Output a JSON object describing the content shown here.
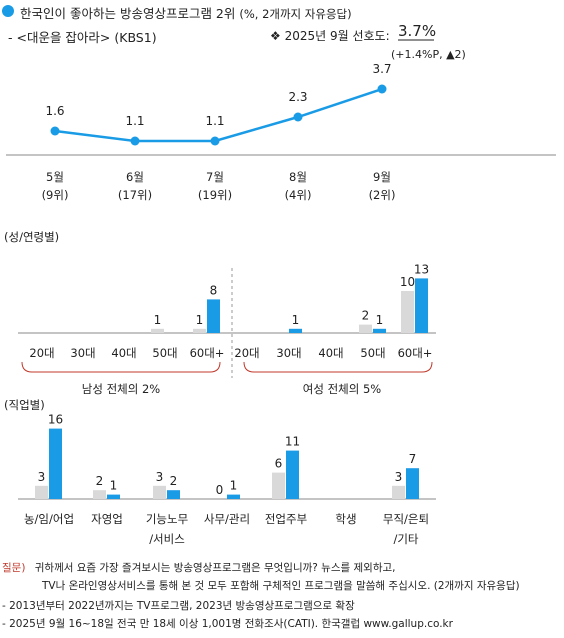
{
  "header": {
    "title_main": "한국인이 좋아하는 방송영상프로그램 2위",
    "title_note": "(%, 2개까지 자유응답)",
    "program": "- <대운을 잡아라> (KBS1)",
    "pref_label": "❖  2025년 9월 선호도:",
    "pref_value": "3.7%",
    "pref_change": "(+1.4%P, ▲2)"
  },
  "colors": {
    "accent": "#1a9be6",
    "gray": "#d9d9d9",
    "bracket": "#c0392b"
  },
  "chart_data": [
    {
      "type": "line",
      "categories": [
        "5월",
        "6월",
        "7월",
        "8월",
        "9월"
      ],
      "ranks": [
        "(9위)",
        "(17위)",
        "(19위)",
        "(4위)",
        "(2위)"
      ],
      "values": [
        1.6,
        1.1,
        1.1,
        2.3,
        3.7
      ],
      "value_labels": [
        "1.6",
        "1.1",
        "1.1",
        "2.3",
        "3.7"
      ]
    },
    {
      "type": "bar",
      "title": "(성/연령별)",
      "categories": [
        "20대",
        "30대",
        "40대",
        "50대",
        "60대+",
        "20대",
        "30대",
        "40대",
        "50대",
        "60대+"
      ],
      "series": [
        {
          "values": [
            0,
            0,
            0,
            1,
            1,
            0,
            0,
            0,
            2,
            10
          ]
        },
        {
          "values": [
            0,
            0,
            0,
            0,
            8,
            0,
            1,
            0,
            1,
            13
          ]
        }
      ],
      "labels": {
        "gray": [
          "",
          "",
          "",
          "1",
          "1",
          "",
          "",
          "",
          "2",
          "10"
        ],
        "blue": [
          "",
          "",
          "",
          "",
          "8",
          "",
          "1",
          "",
          "1",
          "13"
        ]
      },
      "groups": [
        "남성 전체의 2%",
        "여성 전체의 5%"
      ]
    },
    {
      "type": "bar",
      "title": "(직업별)",
      "categories": [
        "농/임/어업",
        "자영업",
        "기능노무/서비스",
        "사무/관리",
        "전업주부",
        "학생",
        "무직/은퇴/기타"
      ],
      "category_lines": [
        [
          "농/임/어업"
        ],
        [
          "자영업"
        ],
        [
          "기능노무",
          "/서비스"
        ],
        [
          "사무/관리"
        ],
        [
          "전업주부"
        ],
        [
          "학생"
        ],
        [
          "무직/은퇴",
          "/기타"
        ]
      ],
      "series": [
        {
          "values": [
            3,
            2,
            3,
            0,
            6,
            0,
            3
          ]
        },
        {
          "values": [
            16,
            1,
            2,
            1,
            11,
            0,
            7
          ]
        }
      ],
      "labels": {
        "gray": [
          "3",
          "2",
          "3",
          "0",
          "6",
          "",
          "3"
        ],
        "blue": [
          "16",
          "1",
          "2",
          "1",
          "11",
          "",
          "7"
        ]
      }
    }
  ],
  "footer": {
    "q_label": "질문)",
    "q_text": "귀하께서 요즘 가장 즐겨보시는 방송영상프로그램은 무엇입니까? 뉴스를 제외하고,",
    "q_text2": "TV나 온라인영상서비스를 통해 본 것 모두 포함해 구체적인 프로그램을 말씀해 주십시오. (2개까지 자유응답)",
    "note1": "- 2013년부터 2022년까지는 TV프로그램, 2023년 방송영상프로그램으로 확장",
    "note2": "- 2025년 9월 16~18일 전국 만 18세 이상 1,001명 전화조사(CATI). 한국갤럽 www.gallup.co.kr"
  }
}
